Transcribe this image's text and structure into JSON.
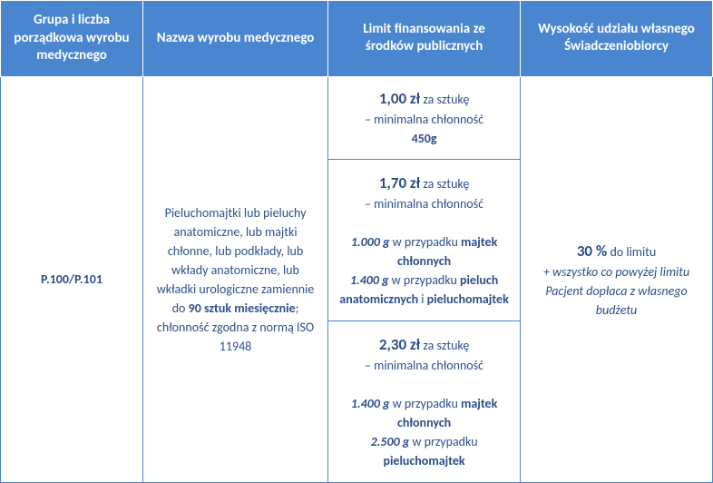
{
  "headers": {
    "col1": "Grupa i liczba porządkowa wyrobu medycznego",
    "col2": "Nazwa wyrobu medycznego",
    "col3": "Limit finansowania ze środków publicznych",
    "col4": "Wysokość udziału własnego Świadczeniobiorcy"
  },
  "code": "P.100/P.101",
  "description": {
    "prefix": "Pieluchomajtki lub pieluchy anatomiczne, lub majtki chłonne, lub podkłady, lub wkłady anatomiczne, lub wkładki urologiczne zamiennie do ",
    "bold1": "90 sztuk miesięcznie",
    "suffix": "; chłonność zgodna z normą ISO 11948"
  },
  "limits": {
    "row1": {
      "price": "1,00 zł",
      "per": " za sztukę",
      "min_label": "– minimalna chłonność",
      "weight": "450g"
    },
    "row2": {
      "price": "1,70 zł",
      "per": " za sztukę",
      "min_label": "– minimalna chłonność",
      "w1": "1.000 g",
      "t1": " w przypadku ",
      "b1": "majtek chłonnych",
      "w2": "1.400 g",
      "t2": " w przypadku ",
      "b2": "pieluch anatomicznych",
      "and": " i ",
      "b3": "pieluchomajtek"
    },
    "row3": {
      "price": "2,30 zł",
      "per": " za sztukę",
      "min_label": "– minimalna chłonność",
      "w1": "1.400 g",
      "t1": " w przypadku ",
      "b1": "majtek chłonnych",
      "w2": "2.500 g",
      "t2": " w przypadku ",
      "b2": "pieluchomajtek"
    }
  },
  "share": {
    "pct": "30 %",
    "pct_suffix": " do limitu",
    "note": "+ wszystko co powyżej limitu Pacjent dopłaca z własnego budżetu"
  },
  "colors": {
    "header_bg": "#4a86d0",
    "header_text": "#ffffff",
    "border": "#4a86d0",
    "text": "#2d4e8a"
  }
}
